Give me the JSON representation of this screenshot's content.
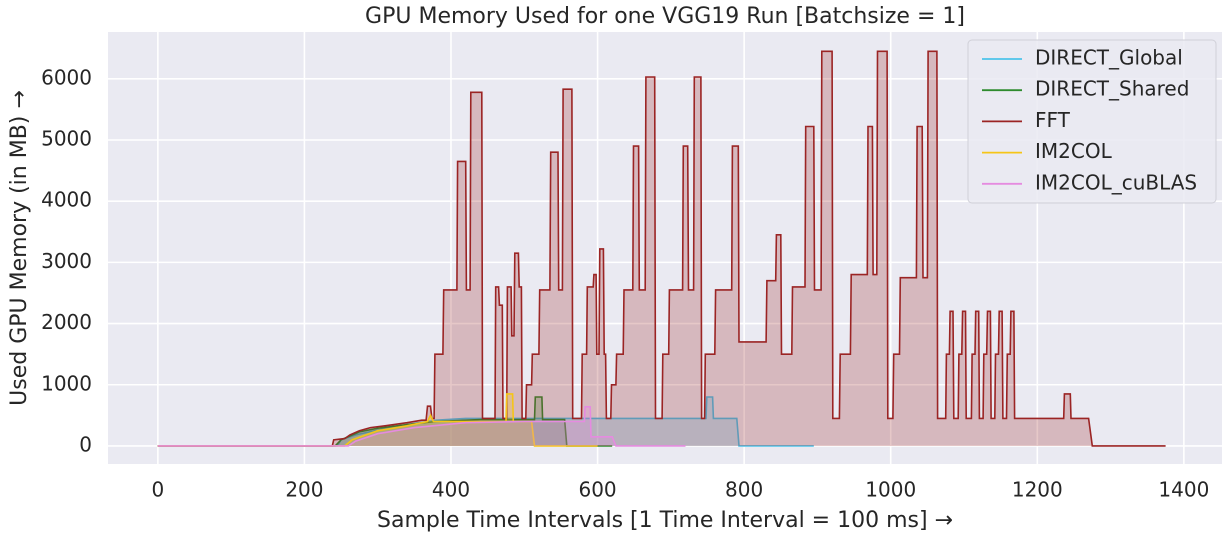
{
  "chart_data": {
    "type": "line",
    "title": "GPU Memory Used for one VGG19 Run [Batchsize = 1]",
    "xlabel": "Sample Time Intervals [1 Time Interval = 100 ms] →",
    "ylabel": "Used GPU Memory (in MB) →",
    "xlim": [
      -68,
      1452
    ],
    "ylim": [
      -295,
      6765
    ],
    "xticks": [
      0,
      200,
      400,
      600,
      800,
      1000,
      1200,
      1400
    ],
    "yticks": [
      0,
      1000,
      2000,
      3000,
      4000,
      5000,
      6000
    ],
    "grid": true,
    "legend": "upper right",
    "fill": true,
    "series": [
      {
        "name": "DIRECT_Global",
        "color": "#4cc3ea",
        "x": [
          0,
          245,
          250,
          270,
          300,
          340,
          380,
          420,
          500,
          600,
          748,
          749,
          757,
          758,
          790,
          793,
          895
        ],
        "values": [
          0,
          0,
          100,
          180,
          260,
          350,
          420,
          450,
          450,
          450,
          450,
          800,
          800,
          450,
          450,
          0,
          0
        ]
      },
      {
        "name": "DIRECT_Shared",
        "color": "#2e8b2e",
        "x": [
          0,
          242,
          250,
          275,
          300,
          340,
          380,
          440,
          514,
          515,
          524,
          525,
          555,
          558,
          620
        ],
        "values": [
          0,
          0,
          100,
          230,
          290,
          350,
          400,
          430,
          430,
          800,
          800,
          430,
          430,
          0,
          0
        ]
      },
      {
        "name": "FFT",
        "color": "#9b2424",
        "x": [
          0,
          238,
          240,
          255,
          262,
          275,
          290,
          310,
          340,
          360,
          366,
          368,
          372,
          374,
          377,
          378,
          389,
          390,
          408,
          409,
          420,
          421,
          426,
          427,
          442,
          443,
          460,
          461,
          465,
          466,
          470,
          471,
          476,
          477,
          482,
          483,
          486,
          487,
          492,
          493,
          496,
          497,
          502,
          503,
          510,
          511,
          520,
          521,
          535,
          536,
          546,
          547,
          552,
          553,
          565,
          566,
          578,
          579,
          585,
          586,
          594,
          595,
          598,
          599,
          602,
          603,
          608,
          609,
          611,
          612,
          618,
          619,
          625,
          626,
          635,
          636,
          648,
          649,
          656,
          657,
          665,
          666,
          678,
          679,
          688,
          689,
          697,
          698,
          716,
          717,
          723,
          724,
          731,
          732,
          741,
          742,
          746,
          747,
          760,
          761,
          783,
          784,
          792,
          793,
          830,
          831,
          843,
          844,
          850,
          851,
          865,
          866,
          883,
          884,
          895,
          896,
          905,
          906,
          920,
          921,
          930,
          931,
          945,
          946,
          968,
          969,
          975,
          976,
          981,
          982,
          995,
          996,
          1003,
          1004,
          1012,
          1013,
          1035,
          1036,
          1043,
          1044,
          1050,
          1051,
          1063,
          1064,
          1075,
          1076,
          1080,
          1081,
          1085,
          1086,
          1092,
          1093,
          1097,
          1098,
          1102,
          1103,
          1110,
          1111,
          1115,
          1116,
          1120,
          1121,
          1126,
          1127,
          1131,
          1132,
          1136,
          1137,
          1142,
          1143,
          1147,
          1148,
          1152,
          1153,
          1158,
          1159,
          1163,
          1164,
          1168,
          1169,
          1236,
          1237,
          1245,
          1246,
          1270,
          1275,
          1375
        ],
        "values": [
          0,
          0,
          100,
          120,
          180,
          250,
          300,
          330,
          380,
          420,
          420,
          650,
          650,
          450,
          450,
          1500,
          1500,
          2550,
          2550,
          4650,
          4650,
          2550,
          2550,
          5780,
          5780,
          450,
          450,
          2600,
          2600,
          2300,
          2300,
          450,
          450,
          2600,
          2600,
          1800,
          1800,
          3150,
          3150,
          2600,
          2600,
          450,
          450,
          1000,
          1000,
          1500,
          1500,
          2550,
          2550,
          4800,
          4800,
          2550,
          2550,
          5830,
          5830,
          450,
          450,
          1500,
          1500,
          2600,
          2600,
          2800,
          2800,
          1500,
          1500,
          3220,
          3220,
          1500,
          1500,
          450,
          450,
          1000,
          1000,
          1500,
          1500,
          2550,
          2550,
          4900,
          4900,
          2550,
          2550,
          6030,
          6030,
          450,
          450,
          1500,
          1500,
          2550,
          2550,
          4900,
          4900,
          2550,
          2550,
          6030,
          6030,
          450,
          450,
          1500,
          1500,
          2550,
          2550,
          4900,
          4900,
          1700,
          1700,
          2700,
          2700,
          3450,
          3450,
          1500,
          1500,
          2600,
          2600,
          5220,
          5220,
          2550,
          2550,
          6450,
          6450,
          450,
          450,
          1500,
          1500,
          2800,
          2800,
          5220,
          5220,
          2800,
          2800,
          6450,
          6450,
          450,
          450,
          1500,
          1500,
          2750,
          2750,
          5220,
          5220,
          2750,
          2750,
          6450,
          6450,
          450,
          450,
          1500,
          1500,
          2200,
          2200,
          450,
          450,
          1500,
          1500,
          2200,
          2200,
          450,
          450,
          1500,
          1500,
          2200,
          2200,
          450,
          450,
          1500,
          1500,
          2200,
          2200,
          450,
          450,
          1500,
          1500,
          2200,
          2200,
          450,
          450,
          1500,
          1500,
          2200,
          2200,
          450,
          450,
          850,
          850,
          450,
          450,
          0,
          0
        ]
      },
      {
        "name": "IM2COL",
        "color": "#f5c518",
        "x": [
          0,
          255,
          265,
          300,
          340,
          368,
          372,
          376,
          440,
          475,
          476,
          484,
          485,
          510,
          514,
          600
        ],
        "values": [
          0,
          0,
          100,
          250,
          330,
          400,
          500,
          400,
          400,
          400,
          850,
          850,
          400,
          400,
          0,
          0
        ]
      },
      {
        "name": "IM2COL_cuBLAS",
        "color": "#e58be0",
        "x": [
          0,
          260,
          270,
          300,
          350,
          420,
          500,
          582,
          583,
          590,
          591,
          620,
          625,
          720
        ],
        "values": [
          0,
          0,
          80,
          200,
          300,
          380,
          400,
          400,
          640,
          640,
          150,
          150,
          0,
          0
        ]
      }
    ]
  }
}
